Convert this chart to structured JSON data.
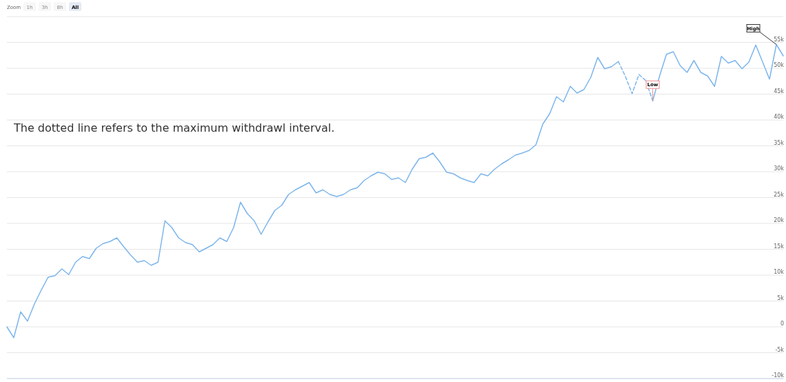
{
  "chart_data": {
    "type": "line",
    "tick_labels": "y",
    "grid": "y",
    "categories": [
      null,
      null,
      null,
      null,
      null,
      null,
      null,
      null,
      null,
      null,
      null,
      null,
      null,
      null,
      null,
      null,
      null,
      null,
      null,
      null,
      null,
      null,
      null,
      null,
      null,
      null,
      null,
      null,
      null,
      null,
      null,
      null,
      null,
      null,
      null,
      null,
      null,
      null,
      null,
      null,
      null,
      null,
      null,
      null,
      null,
      null,
      null,
      null,
      null,
      null,
      null,
      null,
      null,
      null,
      null,
      null,
      null,
      null,
      null,
      null,
      null,
      null,
      null,
      null,
      null,
      null,
      null,
      null,
      null,
      null,
      null,
      null,
      null,
      null,
      null,
      null,
      null,
      null,
      null,
      null,
      null,
      null,
      null,
      null,
      null,
      null,
      null,
      null,
      null,
      null,
      null,
      null,
      null,
      null,
      null,
      null,
      null,
      null,
      null,
      null,
      null,
      null,
      null,
      null,
      null,
      null,
      null,
      null,
      null,
      null,
      null,
      null,
      null,
      null
    ],
    "ylim": [
      -10000,
      60000
    ],
    "yticks": [
      {
        "value": -10000,
        "label": "-10k"
      },
      {
        "value": -5000,
        "label": "-5k"
      },
      0,
      {
        "value": 5000,
        "label": "5k"
      },
      {
        "value": 10000,
        "label": "10k"
      },
      {
        "value": 15000,
        "label": "15k"
      },
      {
        "value": 20000,
        "label": "20k"
      },
      {
        "value": 25000,
        "label": "25k"
      },
      {
        "value": 30000,
        "label": "30k"
      },
      {
        "value": 35000,
        "label": "35k"
      },
      {
        "value": 40000,
        "label": "40k"
      },
      {
        "value": 45000,
        "label": "45k"
      },
      {
        "value": 50000,
        "label": "50k"
      },
      {
        "value": 55000,
        "label": "55k"
      },
      {
        "value": 60000,
        "label": null
      }
    ],
    "series": [
      {
        "color": "#7cb5ec",
        "line_style": "solid",
        "values": [
          0,
          -2100,
          2900,
          1100,
          4400,
          7100,
          9600,
          9900,
          11200,
          10100,
          12500,
          13600,
          13200,
          15200,
          16100,
          16500,
          17200,
          15500,
          13900,
          12500,
          12800,
          11900,
          12500,
          20500,
          19200,
          17200,
          16300,
          15900,
          14500,
          15200,
          15900,
          17200,
          16500,
          19200,
          24100,
          21900,
          20500,
          17900,
          20300,
          22500,
          23500,
          25600,
          26500,
          27200,
          27900,
          25900,
          26500,
          25600,
          25200,
          25600,
          26500,
          26900,
          28300,
          29200,
          29900,
          29600,
          28500,
          28800,
          27900,
          30500,
          32500,
          32800,
          33600,
          31900,
          29900,
          29600,
          28800,
          28300,
          27900,
          29600,
          29200,
          30500,
          31500,
          32300,
          33200,
          33600,
          34100,
          35200,
          39200,
          41200,
          44500,
          43500,
          46500,
          45200,
          45900,
          48300,
          52100,
          49900,
          50300,
          51300,
          null,
          null,
          null,
          null,
          null,
          null,
          null,
          null,
          null,
          null,
          null,
          null,
          null,
          null,
          null,
          null,
          null,
          null,
          null,
          null,
          null,
          null,
          null,
          null
        ]
      },
      {
        "color": "#7cb5ec",
        "line_style": "dashed",
        "values": [
          null,
          null,
          null,
          null,
          null,
          null,
          null,
          null,
          null,
          null,
          null,
          null,
          null,
          null,
          null,
          null,
          null,
          null,
          null,
          null,
          null,
          null,
          null,
          null,
          null,
          null,
          null,
          null,
          null,
          null,
          null,
          null,
          null,
          null,
          null,
          null,
          null,
          null,
          null,
          null,
          null,
          null,
          null,
          null,
          null,
          null,
          null,
          null,
          null,
          null,
          null,
          null,
          null,
          null,
          null,
          null,
          null,
          null,
          null,
          null,
          null,
          null,
          null,
          null,
          null,
          null,
          null,
          null,
          null,
          null,
          null,
          null,
          null,
          null,
          null,
          null,
          null,
          null,
          null,
          null,
          null,
          null,
          null,
          null,
          null,
          null,
          null,
          null,
          null,
          51300,
          48500,
          45100,
          48800,
          47600,
          43700,
          null,
          null,
          null,
          null,
          null,
          null,
          null,
          null,
          null,
          null,
          null,
          null,
          null,
          null,
          null,
          null,
          null,
          null,
          null
        ]
      },
      {
        "color": "#7cb5ec",
        "line_style": "solid",
        "values": [
          null,
          null,
          null,
          null,
          null,
          null,
          null,
          null,
          null,
          null,
          null,
          null,
          null,
          null,
          null,
          null,
          null,
          null,
          null,
          null,
          null,
          null,
          null,
          null,
          null,
          null,
          null,
          null,
          null,
          null,
          null,
          null,
          null,
          null,
          null,
          null,
          null,
          null,
          null,
          null,
          null,
          null,
          null,
          null,
          null,
          null,
          null,
          null,
          null,
          null,
          null,
          null,
          null,
          null,
          null,
          null,
          null,
          null,
          null,
          null,
          null,
          null,
          null,
          null,
          null,
          null,
          null,
          null,
          null,
          null,
          null,
          null,
          null,
          null,
          null,
          null,
          null,
          null,
          null,
          null,
          null,
          null,
          null,
          null,
          null,
          null,
          null,
          null,
          null,
          null,
          null,
          null,
          null,
          null,
          43700,
          48500,
          52700,
          53200,
          50500,
          49200,
          51500,
          49200,
          48500,
          46500,
          52300,
          51000,
          51500,
          49900,
          51200,
          54500,
          51200,
          47900,
          54600,
          52400
        ]
      }
    ],
    "annotations": [
      "The dotted line refers to the maximum withdrawl interval.",
      {
        "text": "High",
        "y": 54600
      },
      {
        "text": "Low",
        "y": 43700
      },
      "Zoom",
      "1h",
      "3h",
      "8h",
      "All"
    ]
  }
}
